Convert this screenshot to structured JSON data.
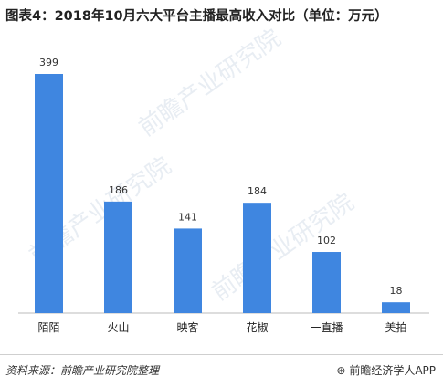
{
  "title": "图表4：2018年10月六大平台主播最高收入对比（单位：万元）",
  "footer": {
    "source": "资料来源：前瞻产业研究院整理",
    "brand": "前瞻经济学人APP",
    "brand_icon": "qianzhan-logo-icon"
  },
  "colors": {
    "bar": "#3f86e0"
  },
  "chart_data": {
    "type": "bar",
    "title": "图表4：2018年10月六大平台主播最高收入对比（单位：万元）",
    "categories": [
      "陌陌",
      "火山",
      "映客",
      "花椒",
      "一直播",
      "美拍"
    ],
    "values": [
      399,
      186,
      141,
      184,
      102,
      18
    ],
    "xlabel": "",
    "ylabel": "",
    "ylim": [
      0,
      420
    ],
    "grid": false,
    "legend": "none"
  }
}
